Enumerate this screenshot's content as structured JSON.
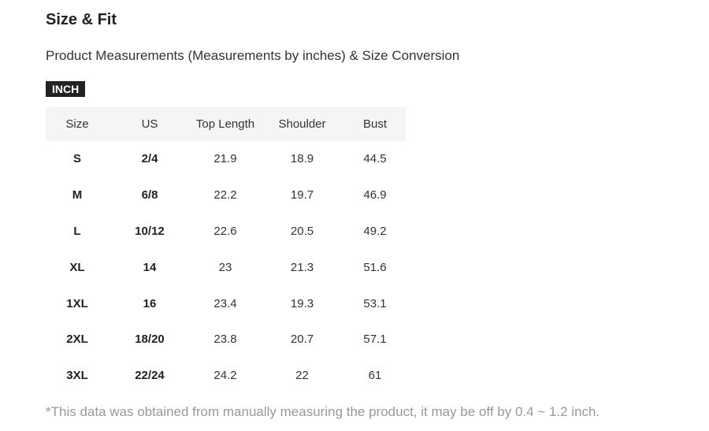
{
  "section": {
    "title": "Size & Fit",
    "subtitle": "Product Measurements (Measurements by inches) & Size Conversion",
    "unit_tag": "INCH"
  },
  "table": {
    "headers": [
      "Size",
      "US",
      "Top Length",
      "Shoulder",
      "Bust"
    ],
    "rows": [
      [
        "S",
        "2/4",
        "21.9",
        "18.9",
        "44.5"
      ],
      [
        "M",
        "6/8",
        "22.2",
        "19.7",
        "46.9"
      ],
      [
        "L",
        "10/12",
        "22.6",
        "20.5",
        "49.2"
      ],
      [
        "XL",
        "14",
        "23",
        "21.3",
        "51.6"
      ],
      [
        "1XL",
        "16",
        "23.4",
        "19.3",
        "53.1"
      ],
      [
        "2XL",
        "18/20",
        "23.8",
        "20.7",
        "57.1"
      ],
      [
        "3XL",
        "22/24",
        "24.2",
        "22",
        "61"
      ]
    ]
  },
  "footnote": "*This data was obtained from manually measuring the product, it may be off by 0.4 ~ 1.2 inch."
}
